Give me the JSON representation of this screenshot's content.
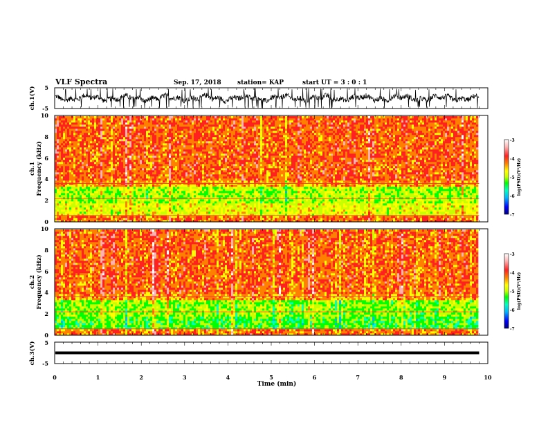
{
  "header": {
    "title": "VLF Spectra",
    "date": "Sep. 17, 2018",
    "station": "station= KAP",
    "start_ut": "start UT =  3 : 0 : 1"
  },
  "chart_data": [
    {
      "type": "line",
      "panel": "ch1-waveform",
      "ylabel": "ch.1(V)",
      "ylim": [
        -5,
        5
      ],
      "y_tick_labels": [
        "5",
        "-5"
      ],
      "x_range_min": [
        0,
        9.8
      ],
      "trace_color": "#000000"
    },
    {
      "type": "heatmap",
      "panel": "ch1-spectrogram",
      "ylabel_line1": "ch.1",
      "ylabel_line2": "Frequency (kHz)",
      "ylim": [
        0,
        10
      ],
      "y_tick_labels": [
        "0",
        "2",
        "4",
        "6",
        "8",
        "10"
      ],
      "x_range_min": [
        0,
        9.8
      ],
      "colorbar": {
        "label": "log(PSD)(V²/Hz)",
        "range": [
          -7,
          -3
        ],
        "tick_labels": [
          "-3",
          "-4",
          "-5",
          "-6",
          "-7"
        ]
      }
    },
    {
      "type": "heatmap",
      "panel": "ch2-spectrogram",
      "ylabel_line1": "ch.2",
      "ylabel_line2": "Frequency (kHz)",
      "ylim": [
        0,
        10
      ],
      "y_tick_labels": [
        "0",
        "2",
        "4",
        "6",
        "8",
        "10"
      ],
      "x_range_min": [
        0,
        9.8
      ],
      "colorbar": {
        "label": "log(PSD)(V²/Hz)",
        "range": [
          -7,
          -3
        ],
        "tick_labels": [
          "-3",
          "-4",
          "-5",
          "-6",
          "-7"
        ]
      }
    },
    {
      "type": "line",
      "panel": "ch3-waveform",
      "ylabel": "ch.3(V)",
      "ylim": [
        -5,
        5
      ],
      "y_tick_labels": [
        "5",
        "-5"
      ],
      "constant_value": 0,
      "x_range_min": [
        0,
        9.8
      ],
      "trace_color": "#000000"
    }
  ],
  "x_axis": {
    "label": "Time (min)",
    "range": [
      0,
      10
    ],
    "tick_labels": [
      "0",
      "1",
      "2",
      "3",
      "4",
      "5",
      "6",
      "7",
      "8",
      "9",
      "10"
    ]
  },
  "colors": {
    "scale": [
      "#000080",
      "#0000ff",
      "#00b4ff",
      "#00ffc0",
      "#00ff00",
      "#c8ff00",
      "#ffff00",
      "#ff8000",
      "#ff2020",
      "#ffb0b0",
      "#ffffff"
    ]
  }
}
